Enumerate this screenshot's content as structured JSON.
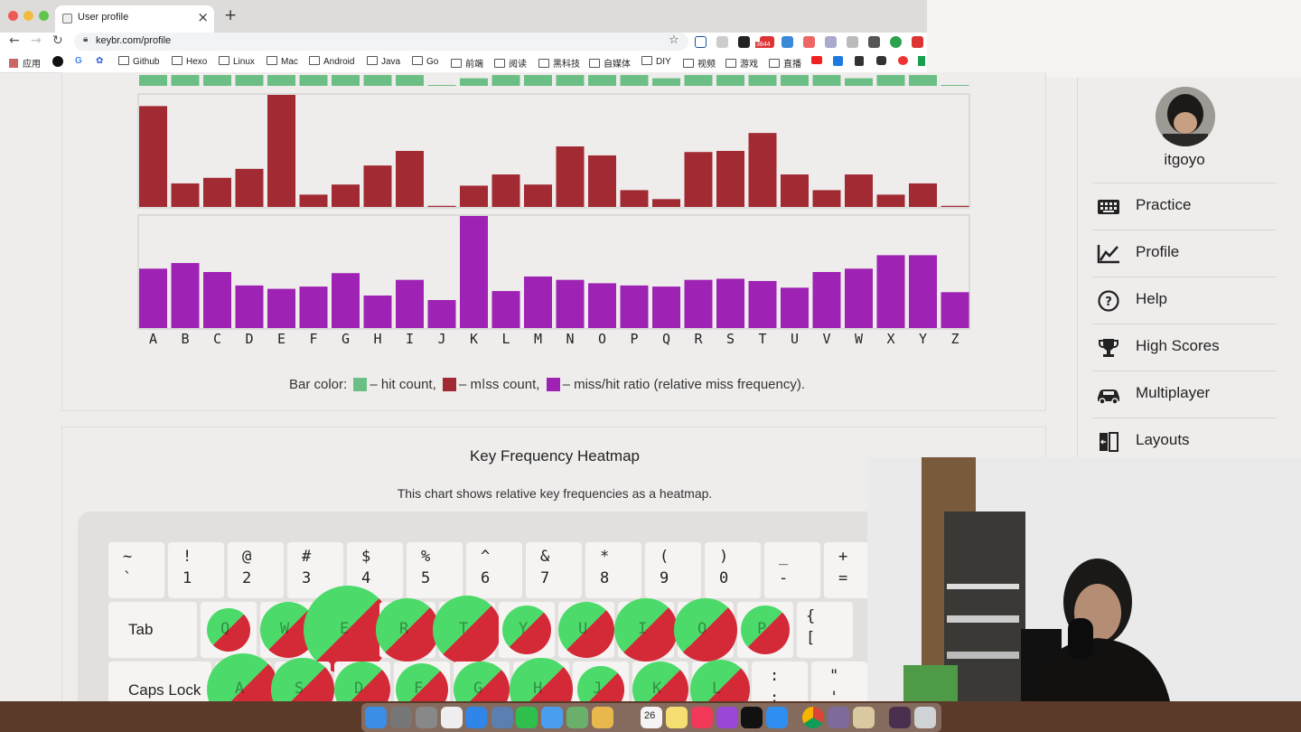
{
  "browser": {
    "tab_title": "User profile",
    "url": "keybr.com/profile",
    "bookmarks": [
      "应用",
      "Github",
      "Hexo",
      "Linux",
      "Mac",
      "Android",
      "Java",
      "Go",
      "前端",
      "阅读",
      "黑科技",
      "自媒体",
      "DIY",
      "视频",
      "游戏",
      "直播"
    ],
    "ext_badge": "3844"
  },
  "chart_data": [
    {
      "type": "bar",
      "series_role": "hit count",
      "categories": [
        "A",
        "B",
        "C",
        "D",
        "E",
        "F",
        "G",
        "H",
        "I",
        "J",
        "K",
        "L",
        "M",
        "N",
        "O",
        "P",
        "Q",
        "R",
        "S",
        "T",
        "U",
        "V",
        "W",
        "X",
        "Y",
        "Z"
      ],
      "values": [
        100,
        100,
        100,
        100,
        100,
        100,
        100,
        100,
        100,
        8,
        70,
        100,
        100,
        100,
        100,
        100,
        70,
        100,
        100,
        100,
        100,
        100,
        70,
        100,
        100,
        8
      ],
      "color": "#6cbf84"
    },
    {
      "type": "bar",
      "series_role": "miss count",
      "categories": [
        "A",
        "B",
        "C",
        "D",
        "E",
        "F",
        "G",
        "H",
        "I",
        "J",
        "K",
        "L",
        "M",
        "N",
        "O",
        "P",
        "Q",
        "R",
        "S",
        "T",
        "U",
        "V",
        "W",
        "X",
        "Y",
        "Z"
      ],
      "values": [
        90,
        21,
        26,
        34,
        100,
        11,
        20,
        37,
        50,
        1,
        19,
        29,
        20,
        54,
        46,
        15,
        7,
        49,
        50,
        66,
        29,
        15,
        29,
        11,
        21,
        1
      ],
      "color": "#a12a33"
    },
    {
      "type": "bar",
      "series_role": "miss/hit ratio",
      "categories": [
        "A",
        "B",
        "C",
        "D",
        "E",
        "F",
        "G",
        "H",
        "I",
        "J",
        "K",
        "L",
        "M",
        "N",
        "O",
        "P",
        "Q",
        "R",
        "S",
        "T",
        "U",
        "V",
        "W",
        "X",
        "Y",
        "Z"
      ],
      "values": [
        53,
        58,
        50,
        38,
        35,
        37,
        49,
        29,
        43,
        25,
        100,
        33,
        46,
        43,
        40,
        38,
        37,
        43,
        44,
        42,
        36,
        50,
        53,
        65,
        65,
        32
      ],
      "color": "#9e22b3"
    }
  ],
  "legend": {
    "prefix": "Bar color:",
    "hit": "– hit count,",
    "miss_a": "– m",
    "miss_b": "ss count,",
    "ratio": "– miss/hit ratio (relative miss frequency).",
    "colors": {
      "hit": "#6cbf84",
      "miss": "#a12a33",
      "ratio": "#9e22b3"
    }
  },
  "heatmap": {
    "title": "Key Frequency Heatmap",
    "description": "This chart shows relative key frequencies as a heatmap.",
    "number_row": [
      {
        "top": "~",
        "bottom": "`"
      },
      {
        "top": "!",
        "bottom": "1"
      },
      {
        "top": "@",
        "bottom": "2"
      },
      {
        "top": "#",
        "bottom": "3"
      },
      {
        "top": "$",
        "bottom": "4"
      },
      {
        "top": "%",
        "bottom": "5"
      },
      {
        "top": "^",
        "bottom": "6"
      },
      {
        "top": "&",
        "bottom": "7"
      },
      {
        "top": "*",
        "bottom": "8"
      },
      {
        "top": "(",
        "bottom": "9"
      },
      {
        "top": ")",
        "bottom": "0"
      },
      {
        "top": "_",
        "bottom": "-"
      },
      {
        "top": "+",
        "bottom": "="
      }
    ],
    "tab_label": "Tab",
    "caps_label": "Caps Lock",
    "top_row": [
      "Q",
      "W",
      "E",
      "R",
      "T",
      "Y",
      "U",
      "I",
      "O",
      "P"
    ],
    "top_row_frequency": [
      0.3,
      0.5,
      1.0,
      0.6,
      0.7,
      0.4,
      0.5,
      0.6,
      0.6,
      0.4
    ],
    "bracket": {
      "top": "{",
      "bottom": "["
    },
    "home_row": [
      "A",
      "S",
      "D",
      "F",
      "G",
      "H",
      "J",
      "K",
      "L"
    ],
    "home_row_frequency": [
      0.75,
      0.6,
      0.5,
      0.45,
      0.5,
      0.6,
      0.35,
      0.5,
      0.55
    ],
    "colon": {
      "top": ":",
      "bottom": ";"
    },
    "quote": {
      "top": "\"",
      "bottom": "'"
    },
    "colors": {
      "frequency": "#4cdb6a",
      "miss": "#d42a38"
    }
  },
  "sidebar": {
    "username": "itgoyo",
    "items": [
      {
        "label": "Practice",
        "icon": "keyboard-icon"
      },
      {
        "label": "Profile",
        "icon": "chart-line-icon"
      },
      {
        "label": "Help",
        "icon": "question-circle-icon"
      },
      {
        "label": "High Scores",
        "icon": "trophy-icon"
      },
      {
        "label": "Multiplayer",
        "icon": "car-icon"
      },
      {
        "label": "Layouts",
        "icon": "layouts-icon"
      }
    ]
  },
  "dock": {
    "calendar_day": "26"
  }
}
